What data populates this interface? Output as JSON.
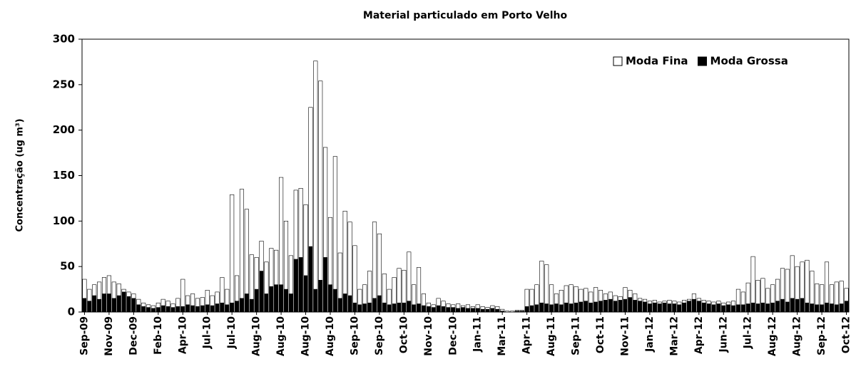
{
  "chart_data": {
    "type": "bar",
    "title": "Material particulado em Porto Velho",
    "ylabel": "Concentração (ug m³)",
    "legend": "upper right",
    "overlay": true,
    "categories": [
      "Sep-09",
      null,
      null,
      null,
      null,
      "Nov-09",
      null,
      null,
      null,
      null,
      "Dec-09",
      null,
      null,
      null,
      null,
      "Feb-10",
      null,
      null,
      null,
      null,
      "Apr-10",
      null,
      null,
      null,
      null,
      "Jul-10",
      null,
      null,
      null,
      null,
      "Jul-10",
      null,
      null,
      null,
      null,
      "Aug-10",
      null,
      null,
      null,
      null,
      "Aug-10",
      null,
      null,
      null,
      null,
      "Aug-10",
      null,
      null,
      null,
      null,
      "Aug-10",
      null,
      null,
      null,
      null,
      "Sep-10",
      null,
      null,
      null,
      null,
      "Sep-10",
      null,
      null,
      null,
      null,
      "Oct-10",
      null,
      null,
      null,
      null,
      "Nov-10",
      null,
      null,
      null,
      null,
      "Dec-10",
      null,
      null,
      null,
      null,
      "Jan-11",
      null,
      null,
      null,
      null,
      "Mar-11",
      null,
      null,
      null,
      null,
      "Apr-11",
      null,
      null,
      null,
      null,
      "Aug-11",
      null,
      null,
      null,
      null,
      "Sep-11",
      null,
      null,
      null,
      null,
      "Oct-11",
      null,
      null,
      null,
      null,
      "Nov-11",
      null,
      null,
      null,
      null,
      "Jan-12",
      null,
      null,
      null,
      null,
      "Mar-12",
      null,
      null,
      null,
      null,
      "Apr-12",
      null,
      null,
      null,
      null,
      "Jun-12",
      null,
      null,
      null,
      null,
      "Jul-12",
      null,
      null,
      null,
      null,
      "Aug-12",
      null,
      null,
      null,
      null,
      "Aug-12",
      null,
      null,
      null,
      null,
      "Sep-12",
      null,
      null,
      null,
      null,
      "Oct-12"
    ],
    "series": [
      {
        "name": "Moda Fina",
        "color": "#ffffff",
        "values": [
          36,
          25,
          30,
          33,
          38,
          40,
          33,
          31,
          25,
          22,
          20,
          14,
          10,
          8,
          7,
          10,
          14,
          12,
          9,
          15,
          36,
          18,
          20,
          15,
          16,
          24,
          18,
          22,
          38,
          25,
          129,
          40,
          135,
          113,
          63,
          60,
          78,
          55,
          70,
          68,
          148,
          100,
          62,
          134,
          136,
          118,
          225,
          276,
          254,
          181,
          104,
          171,
          65,
          111,
          99,
          73,
          25,
          30,
          45,
          99,
          86,
          42,
          25,
          38,
          48,
          46,
          66,
          30,
          49,
          20,
          10,
          8,
          15,
          12,
          9,
          8,
          9,
          7,
          8,
          6,
          8,
          6,
          5,
          7,
          6,
          3,
          1,
          1,
          2,
          2,
          25,
          25,
          30,
          56,
          52,
          30,
          20,
          24,
          29,
          30,
          28,
          25,
          26,
          22,
          27,
          24,
          20,
          22,
          18,
          17,
          27,
          24,
          20,
          15,
          14,
          12,
          13,
          11,
          12,
          13,
          12,
          11,
          13,
          14,
          20,
          15,
          13,
          12,
          11,
          12,
          10,
          11,
          12,
          25,
          22,
          32,
          61,
          35,
          37,
          26,
          30,
          36,
          48,
          47,
          62,
          50,
          55,
          57,
          45,
          31,
          30,
          55,
          30,
          33,
          34,
          26
        ]
      },
      {
        "name": "Moda Grossa",
        "color": "#000000",
        "values": [
          15,
          12,
          18,
          14,
          20,
          20,
          15,
          18,
          22,
          17,
          15,
          8,
          6,
          5,
          4,
          5,
          7,
          6,
          5,
          6,
          6,
          8,
          7,
          6,
          7,
          8,
          7,
          9,
          10,
          8,
          10,
          12,
          15,
          20,
          14,
          25,
          45,
          20,
          28,
          30,
          30,
          25,
          20,
          58,
          60,
          40,
          72,
          25,
          35,
          60,
          30,
          25,
          15,
          20,
          18,
          10,
          8,
          9,
          10,
          15,
          18,
          10,
          8,
          9,
          10,
          10,
          12,
          8,
          9,
          7,
          6,
          5,
          7,
          6,
          5,
          5,
          4,
          5,
          4,
          4,
          4,
          3,
          3,
          4,
          3,
          1,
          0,
          0,
          1,
          1,
          6,
          7,
          8,
          10,
          9,
          8,
          9,
          8,
          10,
          9,
          10,
          11,
          12,
          10,
          11,
          12,
          13,
          14,
          12,
          13,
          14,
          16,
          13,
          12,
          11,
          9,
          10,
          9,
          10,
          9,
          9,
          8,
          10,
          12,
          14,
          12,
          10,
          9,
          8,
          9,
          7,
          8,
          7,
          8,
          8,
          9,
          10,
          9,
          10,
          9,
          10,
          12,
          14,
          11,
          15,
          14,
          15,
          10,
          9,
          8,
          8,
          10,
          9,
          8,
          9,
          12
        ]
      }
    ],
    "ylim": [
      0,
      300
    ],
    "yticks": [
      0,
      50,
      100,
      150,
      200,
      250,
      300
    ]
  }
}
